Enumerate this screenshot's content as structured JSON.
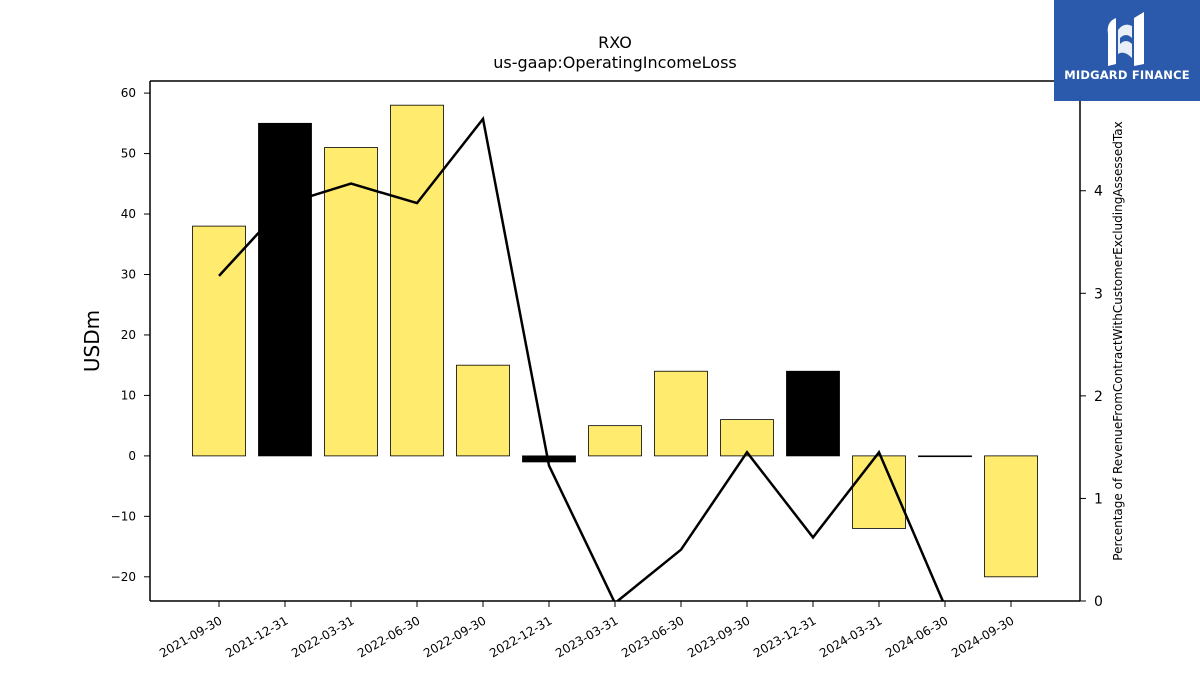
{
  "chart_data": {
    "type": "bar",
    "title": "RXO",
    "subtitle": "us-gaap:OperatingIncomeLoss",
    "ylabel": "USDm",
    "ylabel_right": "Percentage of RevenueFromContractWithCustomerExcludingAssessedTax",
    "ylim": [
      -24,
      62
    ],
    "ylim_right": [
      0,
      5.07
    ],
    "yticks": [
      -20,
      -10,
      0,
      10,
      20,
      30,
      40,
      50,
      60
    ],
    "yticks_right": [
      0,
      1,
      2,
      3,
      4
    ],
    "categories": [
      "2021-09-30",
      "2021-12-31",
      "2022-03-31",
      "2022-06-30",
      "2022-09-30",
      "2022-12-31",
      "2023-03-31",
      "2023-06-30",
      "2023-09-30",
      "2023-12-31",
      "2024-03-31",
      "2024-06-30",
      "2024-09-30"
    ],
    "series": [
      {
        "kind": "bar",
        "values": [
          38,
          55,
          51,
          58,
          15,
          -1,
          5,
          14,
          6,
          14,
          -12,
          0,
          -20
        ],
        "colors": [
          "#ffeb6e",
          "#000000",
          "#ffeb6e",
          "#ffeb6e",
          "#ffeb6e",
          "#000000",
          "#ffeb6e",
          "#ffeb6e",
          "#ffeb6e",
          "#000000",
          "#ffeb6e",
          "#ffeb6e",
          "#ffeb6e"
        ]
      },
      {
        "kind": "line",
        "axis": "right",
        "values": [
          3.17,
          3.87,
          4.07,
          3.88,
          4.7,
          1.32,
          -0.02,
          0.5,
          1.45,
          0.62,
          1.45,
          -0.05,
          null
        ]
      }
    ],
    "grid": false
  },
  "logo": {
    "text": "MIDGARD FINANCE"
  },
  "colors": {
    "bar_yellow": "#ffeb6e",
    "bar_black": "#000000",
    "logo_bg": "#2b5aad"
  }
}
